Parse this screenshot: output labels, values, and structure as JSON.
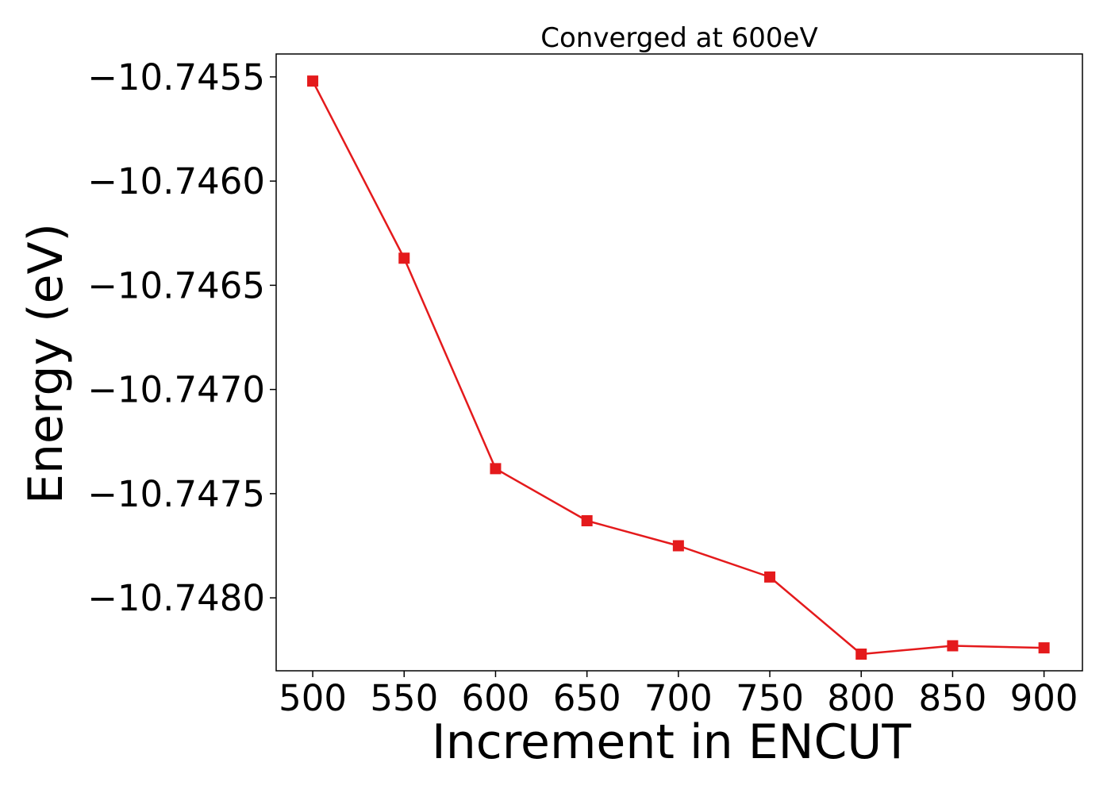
{
  "chart_data": {
    "type": "line",
    "title": "Converged at 600eV",
    "xlabel": "Increment in ENCUT",
    "ylabel": "Energy (eV)",
    "x": [
      500,
      550,
      600,
      650,
      700,
      750,
      800,
      850,
      900
    ],
    "series": [
      {
        "values": [
          -10.74552,
          -10.74637,
          -10.74738,
          -10.74763,
          -10.74775,
          -10.7479,
          -10.74827,
          -10.74823,
          -10.74824
        ],
        "color": "#e41a1c",
        "marker": "square"
      }
    ],
    "xlim": [
      480,
      921
    ],
    "ylim": [
      -10.74835,
      -10.74539
    ],
    "xticks": [
      500,
      550,
      600,
      650,
      700,
      750,
      800,
      850,
      900
    ],
    "xtick_labels": [
      "500",
      "550",
      "600",
      "650",
      "700",
      "750",
      "800",
      "850",
      "900"
    ],
    "yticks": [
      -10.7455,
      -10.746,
      -10.7465,
      -10.747,
      -10.7475,
      -10.748
    ],
    "ytick_labels": [
      "−10.7455",
      "−10.7460",
      "−10.7465",
      "−10.7470",
      "−10.7475",
      "−10.7480"
    ],
    "grid": false,
    "legend": "none"
  }
}
